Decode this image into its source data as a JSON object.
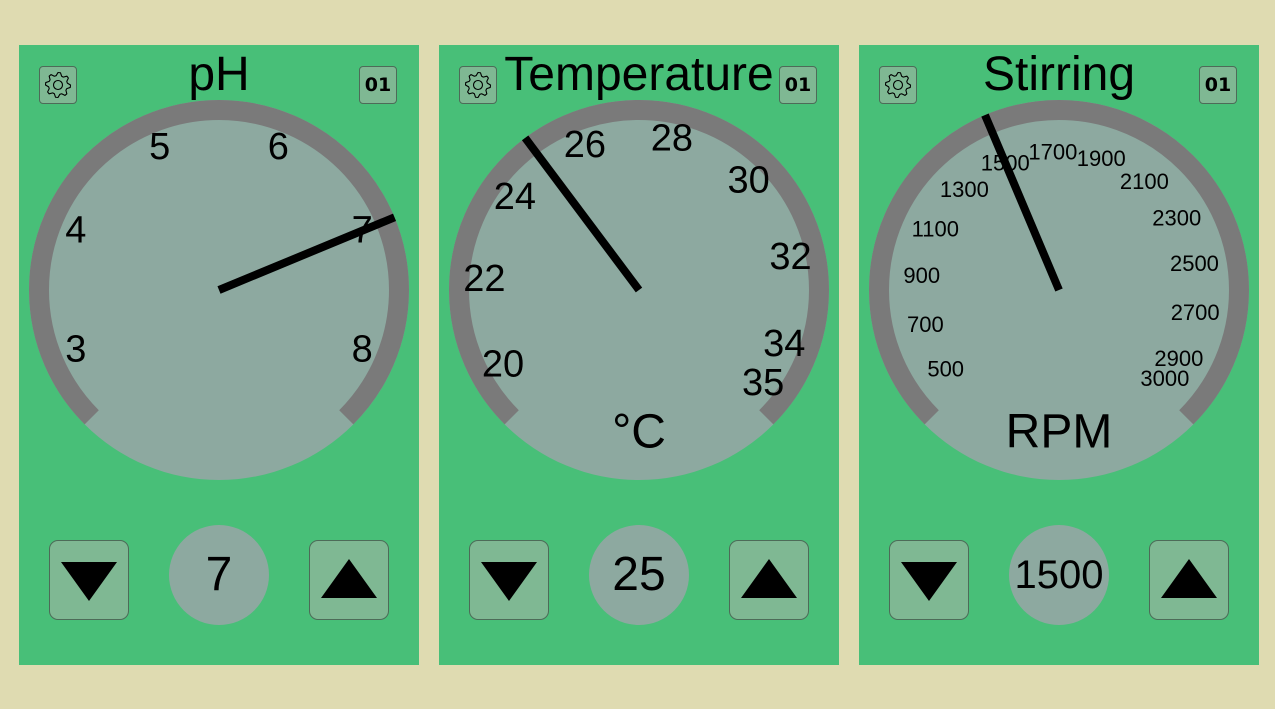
{
  "panels": [
    {
      "title": "pH",
      "channel": "01",
      "unit": "",
      "value": "7",
      "dial": {
        "min": 2.5,
        "max": 8.5,
        "needle": 7,
        "labels": [
          "3",
          "4",
          "5",
          "6",
          "7",
          "8"
        ],
        "label_values": [
          3,
          4,
          5,
          6,
          7,
          8
        ]
      }
    },
    {
      "title": "Temperature",
      "channel": "01",
      "unit": "°C",
      "value": "25",
      "dial": {
        "min": 19,
        "max": 35.5,
        "needle": 25,
        "labels": [
          "20",
          "22",
          "24",
          "26",
          "28",
          "30",
          "32",
          "34",
          "35"
        ],
        "label_values": [
          20,
          22,
          24,
          26,
          28,
          30,
          32,
          34,
          35
        ]
      }
    },
    {
      "title": "Stirring",
      "channel": "01",
      "unit": "RPM",
      "value": "1500",
      "dial": {
        "min": 400,
        "max": 3050,
        "needle": 1500,
        "labels": [
          "500",
          "700",
          "900",
          "1100",
          "1300",
          "1500",
          "1700",
          "1900",
          "2100",
          "2300",
          "2500",
          "2700",
          "2900",
          "3000"
        ],
        "label_values": [
          500,
          700,
          900,
          1100,
          1300,
          1500,
          1700,
          1900,
          2100,
          2300,
          2500,
          2700,
          2900,
          3000
        ]
      }
    }
  ],
  "colors": {
    "background": "#dfdbb1",
    "panel": "#48bf78",
    "dial_face": "#8da9a0",
    "dial_ring": "#7a7a7a",
    "button": "#7fb893",
    "needle": "#000000"
  },
  "icons": {
    "settings": "gear-icon",
    "decrease": "triangle-down-icon",
    "increase": "triangle-up-icon"
  }
}
